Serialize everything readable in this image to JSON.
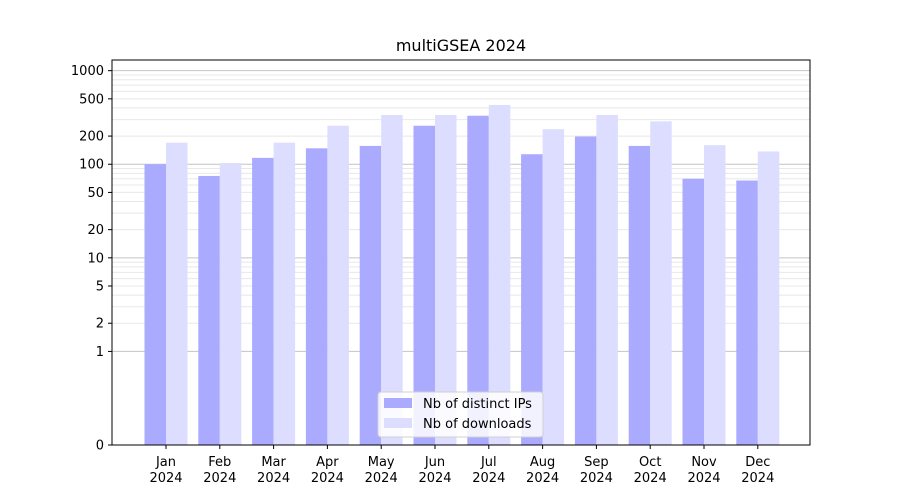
{
  "chart_data": {
    "type": "bar",
    "title": "multiGSEA 2024",
    "xlabel": "",
    "ylabel": "",
    "y_scale": "symlog",
    "ylim": [
      0,
      1300
    ],
    "y_ticks": [
      0,
      1,
      2,
      5,
      10,
      20,
      50,
      100,
      200,
      500,
      1000
    ],
    "grid": "horizontal",
    "legend_position": "bottom-center",
    "categories": [
      [
        "Jan",
        "2024"
      ],
      [
        "Feb",
        "2024"
      ],
      [
        "Mar",
        "2024"
      ],
      [
        "Apr",
        "2024"
      ],
      [
        "May",
        "2024"
      ],
      [
        "Jun",
        "2024"
      ],
      [
        "Jul",
        "2024"
      ],
      [
        "Aug",
        "2024"
      ],
      [
        "Sep",
        "2024"
      ],
      [
        "Oct",
        "2024"
      ],
      [
        "Nov",
        "2024"
      ],
      [
        "Dec",
        "2024"
      ]
    ],
    "series": [
      {
        "name": "Nb of distinct IPs",
        "color": "#aaaaff",
        "values": [
          100,
          75,
          117,
          148,
          157,
          258,
          330,
          128,
          198,
          157,
          70,
          67
        ]
      },
      {
        "name": "Nb of downloads",
        "color": "#ddddff",
        "values": [
          170,
          103,
          170,
          258,
          336,
          336,
          430,
          237,
          336,
          287,
          160,
          137
        ]
      }
    ]
  }
}
